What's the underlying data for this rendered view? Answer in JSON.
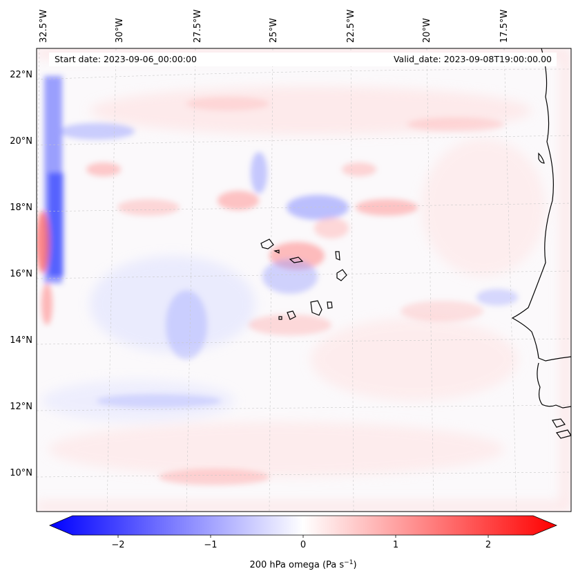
{
  "header": {
    "start_date": "Start date: 2023-09-06_00:00:00",
    "valid_date": "Valid_date: 2023-09-08T19:00:00.00"
  },
  "map": {
    "projection": "Lambert conformal",
    "extent": {
      "lon_min": -33.0,
      "lon_max": -15.0,
      "lat_min": 9.0,
      "lat_max": 22.5
    },
    "longitude_labels": [
      "32.5°W",
      "30°W",
      "27.5°W",
      "25°W",
      "22.5°W",
      "20°W",
      "17.5°W"
    ],
    "latitude_labels": [
      "22°N",
      "20°N",
      "18°N",
      "16°N",
      "14°N",
      "12°N",
      "10°N"
    ],
    "gridlines": true,
    "field": "200 hPa omega",
    "coastline_color": "#000000",
    "features": [
      "Cape Verde islands",
      "West African coastline"
    ]
  },
  "colorbar": {
    "label": "200 hPa omega (Pa s$^{-1}$)",
    "label_text": "200 hPa omega (Pa s",
    "label_sup": "−1",
    "label_close": ")",
    "ticks": [
      "−2",
      "−1",
      "0",
      "1",
      "2"
    ],
    "tick_values": [
      -2,
      -1,
      0,
      1,
      2
    ],
    "range": [
      -2.5,
      2.5
    ],
    "cmap": "bwr",
    "extend": "both",
    "colors": {
      "negative": "#0000ff",
      "zero": "#ffffff",
      "positive": "#ff0000"
    }
  }
}
